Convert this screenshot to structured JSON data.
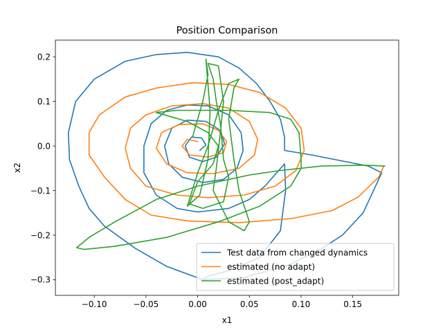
{
  "chart_data": {
    "type": "line",
    "title": "Position Comparison",
    "xlabel": "x1",
    "ylabel": "x2",
    "xlim": [
      -0.1376,
      0.1944
    ],
    "ylim": [
      -0.335,
      0.2375
    ],
    "xticks": [
      -0.1,
      -0.05,
      0.0,
      0.05,
      0.1,
      0.15
    ],
    "xtick_labels": [
      "−0.10",
      "−0.05",
      "0.00",
      "0.05",
      "0.10",
      "0.15"
    ],
    "yticks": [
      -0.3,
      -0.2,
      -0.1,
      0.0,
      0.1,
      0.2
    ],
    "ytick_labels": [
      "−0.3",
      "−0.2",
      "−0.1",
      "0.0",
      "0.1",
      "0.2"
    ],
    "grid": false,
    "legend_position": "lower-right",
    "colors": {
      "test": "#1f77b4",
      "no_adapt": "#ff7f0e",
      "post_adapt": "#2ca02c"
    },
    "series": [
      {
        "name": "Test data from changed dynamics",
        "color": "#1f77b4",
        "trajectory": "inward spiral",
        "points": [
          [
            0.005,
            -0.3
          ],
          [
            0.045,
            -0.295
          ],
          [
            0.09,
            -0.265
          ],
          [
            0.12,
            -0.23
          ],
          [
            0.14,
            -0.2
          ],
          [
            0.16,
            -0.15
          ],
          [
            0.178,
            -0.06
          ],
          [
            0.165,
            -0.045
          ],
          [
            0.11,
            -0.02
          ],
          [
            0.084,
            -0.01
          ],
          [
            0.084,
            0.02
          ],
          [
            0.08,
            0.06
          ],
          [
            0.07,
            0.1
          ],
          [
            0.057,
            0.14
          ],
          [
            0.04,
            0.175
          ],
          [
            0.02,
            0.2
          ],
          [
            -0.01,
            0.21
          ],
          [
            -0.04,
            0.205
          ],
          [
            -0.07,
            0.19
          ],
          [
            -0.1,
            0.15
          ],
          [
            -0.118,
            0.1
          ],
          [
            -0.125,
            0.03
          ],
          [
            -0.124,
            -0.03
          ],
          [
            -0.115,
            -0.09
          ],
          [
            -0.105,
            -0.14
          ],
          [
            -0.09,
            -0.18
          ],
          [
            -0.06,
            -0.23
          ],
          [
            -0.03,
            -0.27
          ],
          [
            0.005,
            -0.3
          ],
          [
            0.01,
            -0.292
          ],
          [
            0.03,
            -0.28
          ],
          [
            0.06,
            -0.25
          ],
          [
            0.08,
            -0.19
          ],
          [
            0.085,
            -0.1
          ],
          [
            0.084,
            -0.04
          ],
          [
            0.065,
            -0.09
          ],
          [
            0.05,
            -0.12
          ],
          [
            0.03,
            -0.14
          ],
          [
            0.0,
            -0.148
          ],
          [
            -0.02,
            -0.14
          ],
          [
            -0.04,
            -0.11
          ],
          [
            -0.052,
            -0.06
          ],
          [
            -0.052,
            0.0
          ],
          [
            -0.045,
            0.05
          ],
          [
            -0.03,
            0.08
          ],
          [
            -0.01,
            0.092
          ],
          [
            0.01,
            0.09
          ],
          [
            0.03,
            0.07
          ],
          [
            0.042,
            0.03
          ],
          [
            0.044,
            -0.01
          ],
          [
            0.038,
            -0.05
          ],
          [
            0.025,
            -0.075
          ],
          [
            0.005,
            -0.082
          ],
          [
            -0.015,
            -0.07
          ],
          [
            -0.028,
            -0.04
          ],
          [
            -0.032,
            0.0
          ],
          [
            -0.025,
            0.04
          ],
          [
            -0.01,
            0.058
          ],
          [
            0.008,
            0.055
          ],
          [
            0.022,
            0.035
          ],
          [
            0.026,
            0.005
          ],
          [
            0.018,
            -0.025
          ],
          [
            0.005,
            -0.035
          ],
          [
            -0.008,
            -0.025
          ],
          [
            -0.012,
            0.0
          ],
          [
            -0.006,
            0.02
          ],
          [
            0.004,
            0.018
          ],
          [
            0.008,
            0.002
          ],
          [
            0.002,
            -0.01
          ]
        ]
      },
      {
        "name": "estimated (no adapt)",
        "color": "#ff7f0e",
        "trajectory": "inward spiral",
        "points": [
          [
            0.18,
            -0.045
          ],
          [
            0.175,
            -0.07
          ],
          [
            0.155,
            -0.115
          ],
          [
            0.13,
            -0.145
          ],
          [
            0.09,
            -0.163
          ],
          [
            0.04,
            -0.172
          ],
          [
            -0.01,
            -0.168
          ],
          [
            -0.045,
            -0.155
          ],
          [
            -0.07,
            -0.12
          ],
          [
            -0.09,
            -0.07
          ],
          [
            -0.105,
            -0.02
          ],
          [
            -0.105,
            0.03
          ],
          [
            -0.095,
            0.07
          ],
          [
            -0.07,
            0.11
          ],
          [
            -0.04,
            0.13
          ],
          [
            -0.005,
            0.142
          ],
          [
            0.03,
            0.138
          ],
          [
            0.06,
            0.12
          ],
          [
            0.085,
            0.085
          ],
          [
            0.1,
            0.04
          ],
          [
            0.103,
            -0.01
          ],
          [
            0.095,
            -0.055
          ],
          [
            0.075,
            -0.09
          ],
          [
            0.045,
            -0.11
          ],
          [
            0.01,
            -0.116
          ],
          [
            -0.02,
            -0.11
          ],
          [
            -0.05,
            -0.09
          ],
          [
            -0.065,
            -0.05
          ],
          [
            -0.07,
            -0.005
          ],
          [
            -0.065,
            0.04
          ],
          [
            -0.05,
            0.07
          ],
          [
            -0.025,
            0.09
          ],
          [
            0.005,
            0.095
          ],
          [
            0.03,
            0.085
          ],
          [
            0.05,
            0.055
          ],
          [
            0.058,
            0.015
          ],
          [
            0.055,
            -0.02
          ],
          [
            0.04,
            -0.05
          ],
          [
            0.015,
            -0.062
          ],
          [
            -0.01,
            -0.06
          ],
          [
            -0.03,
            -0.04
          ],
          [
            -0.04,
            -0.005
          ],
          [
            -0.035,
            0.03
          ],
          [
            -0.018,
            0.048
          ],
          [
            0.005,
            0.05
          ],
          [
            0.02,
            0.035
          ],
          [
            0.028,
            0.01
          ],
          [
            0.025,
            -0.015
          ],
          [
            0.01,
            -0.025
          ],
          [
            -0.008,
            -0.02
          ],
          [
            -0.015,
            0.0
          ],
          [
            -0.01,
            0.015
          ],
          [
            0.0,
            0.01
          ]
        ]
      },
      {
        "name": "estimated (post_adapt)",
        "color": "#2ca02c",
        "trajectory": "erratic loop",
        "points": [
          [
            0.181,
            -0.045
          ],
          [
            0.16,
            -0.043
          ],
          [
            0.12,
            -0.045
          ],
          [
            0.08,
            -0.055
          ],
          [
            0.05,
            -0.065
          ],
          [
            0.0,
            -0.09
          ],
          [
            -0.04,
            -0.12
          ],
          [
            -0.08,
            -0.17
          ],
          [
            -0.105,
            -0.205
          ],
          [
            -0.117,
            -0.228
          ],
          [
            -0.11,
            -0.232
          ],
          [
            -0.08,
            -0.225
          ],
          [
            -0.03,
            -0.205
          ],
          [
            0.02,
            -0.17
          ],
          [
            0.06,
            -0.135
          ],
          [
            0.09,
            -0.09
          ],
          [
            0.1,
            -0.05
          ],
          [
            0.1,
            -0.03
          ],
          [
            0.098,
            0.03
          ],
          [
            0.09,
            0.06
          ],
          [
            0.07,
            0.075
          ],
          [
            0.03,
            0.08
          ],
          [
            -0.02,
            0.08
          ],
          [
            -0.04,
            0.075
          ],
          [
            -0.01,
            0.055
          ],
          [
            0.01,
            0.03
          ],
          [
            0.02,
            0.0
          ],
          [
            0.015,
            -0.04
          ],
          [
            0.0,
            -0.08
          ],
          [
            -0.008,
            -0.13
          ],
          [
            0.005,
            -0.14
          ],
          [
            0.025,
            -0.125
          ],
          [
            0.03,
            -0.07
          ],
          [
            0.025,
            -0.03
          ],
          [
            0.022,
            0.05
          ],
          [
            0.018,
            0.1
          ],
          [
            0.015,
            0.15
          ],
          [
            0.01,
            0.185
          ],
          [
            0.02,
            0.18
          ],
          [
            0.025,
            0.1
          ],
          [
            0.022,
            0.03
          ],
          [
            0.018,
            -0.05
          ],
          [
            0.015,
            -0.1
          ],
          [
            0.03,
            -0.17
          ],
          [
            0.045,
            -0.19
          ],
          [
            0.05,
            -0.17
          ],
          [
            0.04,
            -0.1
          ],
          [
            0.035,
            -0.03
          ],
          [
            0.03,
            0.06
          ],
          [
            0.035,
            0.13
          ],
          [
            0.04,
            0.15
          ],
          [
            0.03,
            0.14
          ],
          [
            0.02,
            0.08
          ],
          [
            0.01,
            0.0
          ],
          [
            0.0,
            -0.06
          ],
          [
            -0.01,
            -0.135
          ],
          [
            0.002,
            -0.11
          ],
          [
            0.01,
            -0.03
          ],
          [
            0.012,
            0.08
          ],
          [
            0.008,
            0.195
          ],
          [
            0.01,
            0.16
          ],
          [
            0.005,
            0.1
          ],
          [
            -0.005,
            0.02
          ]
        ]
      }
    ]
  }
}
